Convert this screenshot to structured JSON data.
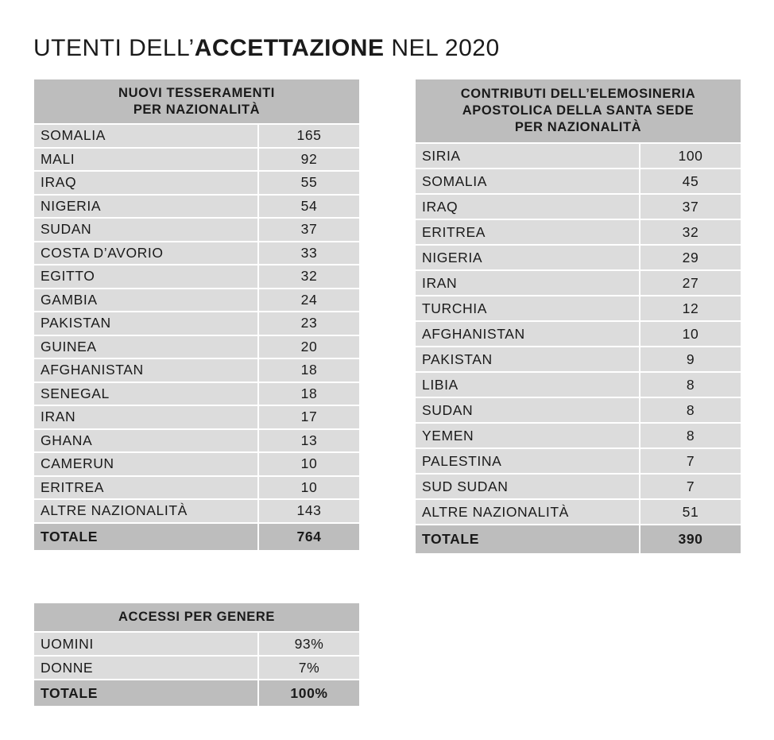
{
  "title": {
    "prefix": "UTENTI DELL’",
    "bold": "ACCETTAZIONE",
    "suffix": " NEL 2020"
  },
  "table_tesseramenti": {
    "header_line1": "NUOVI TESSERAMENTI",
    "header_line2": "PER NAZIONALITÀ",
    "rows": [
      {
        "label": "SOMALIA",
        "value": "165"
      },
      {
        "label": "MALI",
        "value": "92"
      },
      {
        "label": "IRAQ",
        "value": "55"
      },
      {
        "label": "NIGERIA",
        "value": "54"
      },
      {
        "label": "SUDAN",
        "value": "37"
      },
      {
        "label": "COSTA D’AVORIO",
        "value": "33"
      },
      {
        "label": "EGITTO",
        "value": "32"
      },
      {
        "label": "GAMBIA",
        "value": "24"
      },
      {
        "label": "PAKISTAN",
        "value": "23"
      },
      {
        "label": "GUINEA",
        "value": "20"
      },
      {
        "label": "AFGHANISTAN",
        "value": "18"
      },
      {
        "label": "SENEGAL",
        "value": "18"
      },
      {
        "label": "IRAN",
        "value": "17"
      },
      {
        "label": "GHANA",
        "value": "13"
      },
      {
        "label": "CAMERUN",
        "value": "10"
      },
      {
        "label": "ERITREA",
        "value": "10"
      },
      {
        "label": "ALTRE NAZIONALITÀ",
        "value": "143"
      }
    ],
    "total_label": "TOTALE",
    "total_value": "764"
  },
  "table_contributi": {
    "header_line1": "CONTRIBUTI DELL’ELEMOSINERIA",
    "header_line2": "APOSTOLICA DELLA SANTA SEDE",
    "header_line3": "PER NAZIONALITÀ",
    "rows": [
      {
        "label": "SIRIA",
        "value": "100"
      },
      {
        "label": "SOMALIA",
        "value": "45"
      },
      {
        "label": "IRAQ",
        "value": "37"
      },
      {
        "label": "ERITREA",
        "value": "32"
      },
      {
        "label": "NIGERIA",
        "value": "29"
      },
      {
        "label": "IRAN",
        "value": "27"
      },
      {
        "label": "TURCHIA",
        "value": "12"
      },
      {
        "label": "AFGHANISTAN",
        "value": "10"
      },
      {
        "label": "PAKISTAN",
        "value": "9"
      },
      {
        "label": "LIBIA",
        "value": "8"
      },
      {
        "label": "SUDAN",
        "value": "8"
      },
      {
        "label": "YEMEN",
        "value": "8"
      },
      {
        "label": "PALESTINA",
        "value": "7"
      },
      {
        "label": "SUD SUDAN",
        "value": "7"
      },
      {
        "label": "ALTRE NAZIONALITÀ",
        "value": "51"
      }
    ],
    "total_label": "TOTALE",
    "total_value": "390"
  },
  "table_genere": {
    "header": "ACCESSI PER GENERE",
    "rows": [
      {
        "label": "UOMINI",
        "value": "93%"
      },
      {
        "label": "DONNE",
        "value": "7%"
      }
    ],
    "total_label": "TOTALE",
    "total_value": "100%"
  }
}
